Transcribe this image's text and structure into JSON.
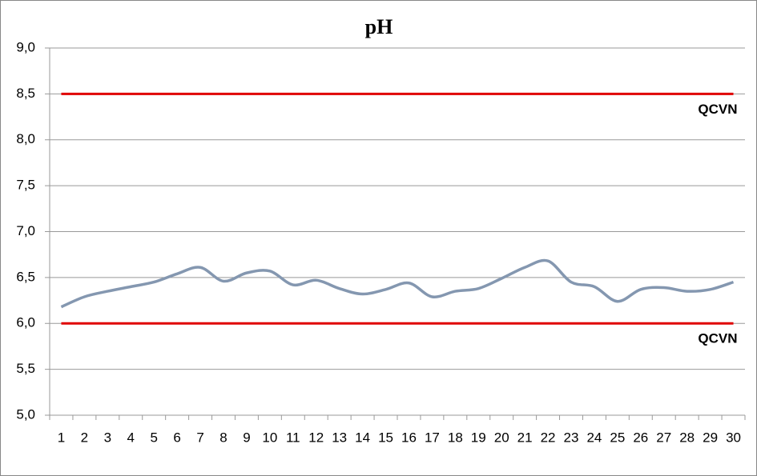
{
  "chart_data": {
    "type": "line",
    "title": "pH",
    "categories": [
      "1",
      "2",
      "3",
      "4",
      "5",
      "6",
      "7",
      "8",
      "9",
      "10",
      "11",
      "12",
      "13",
      "14",
      "15",
      "16",
      "17",
      "18",
      "19",
      "20",
      "21",
      "22",
      "23",
      "24",
      "25",
      "26",
      "27",
      "28",
      "29",
      "30"
    ],
    "values": [
      6.18,
      6.29,
      6.35,
      6.4,
      6.45,
      6.54,
      6.61,
      6.46,
      6.55,
      6.57,
      6.42,
      6.47,
      6.38,
      6.32,
      6.37,
      6.44,
      6.29,
      6.35,
      6.38,
      6.49,
      6.61,
      6.68,
      6.45,
      6.4,
      6.24,
      6.37,
      6.39,
      6.35,
      6.37,
      6.45
    ],
    "color": "#8497b0",
    "ylim": [
      5.0,
      9.0
    ],
    "yticks": [
      {
        "value": 5.0,
        "label": "5,0"
      },
      {
        "value": 5.5,
        "label": "5,5"
      },
      {
        "value": 6.0,
        "label": "6,0"
      },
      {
        "value": 6.5,
        "label": "6,5"
      },
      {
        "value": 7.0,
        "label": "7,0"
      },
      {
        "value": 7.5,
        "label": "7,5"
      },
      {
        "value": 8.0,
        "label": "8,0"
      },
      {
        "value": 8.5,
        "label": "8,5"
      },
      {
        "value": 9.0,
        "label": "9,0"
      }
    ],
    "grid": true,
    "reference_lines": [
      {
        "value": 8.5,
        "label": "QCVN",
        "color": "#e00000"
      },
      {
        "value": 6.0,
        "label": "QCVN",
        "color": "#e00000"
      }
    ]
  }
}
